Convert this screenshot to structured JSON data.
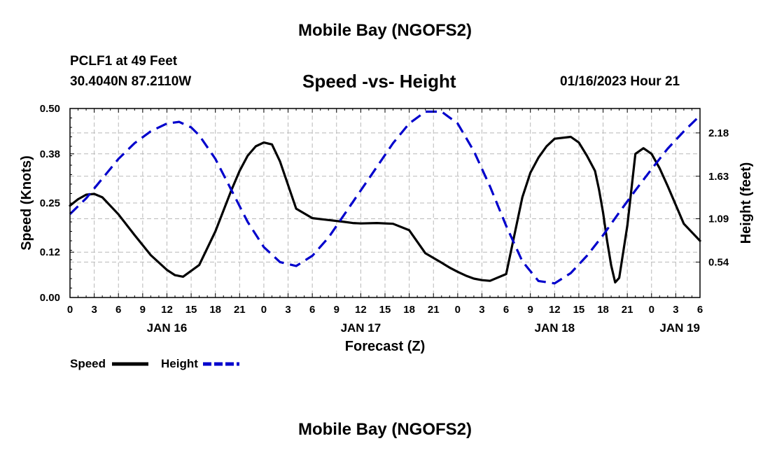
{
  "header": {
    "title": "Mobile Bay (NGOFS2)",
    "station": "PCLF1 at 49 Feet",
    "coordinates": "30.4040N  87.2110W",
    "subtitle": "Speed -vs- Height",
    "timestamp": "01/16/2023 Hour 21"
  },
  "footer": {
    "title": "Mobile Bay (NGOFS2)"
  },
  "chart_data": {
    "type": "line",
    "title": "Speed -vs- Height",
    "xlabel": "Forecast (Z)",
    "ylabel": "Speed (Knots)",
    "y2label": "Height (feet)",
    "xlim": [
      0,
      78
    ],
    "ylim": [
      0,
      0.5
    ],
    "y2lim": [
      0.09,
      2.49
    ],
    "grid": true,
    "legend_position": "bottom-left",
    "x_tick_labels": [
      "0",
      "3",
      "6",
      "9",
      "12",
      "15",
      "18",
      "21",
      "0",
      "3",
      "6",
      "9",
      "12",
      "15",
      "18",
      "21",
      "0",
      "3",
      "6",
      "9",
      "12",
      "15",
      "18",
      "21",
      "0",
      "3",
      "6"
    ],
    "date_labels": [
      {
        "label": "JAN 16",
        "x": 12
      },
      {
        "label": "JAN 17",
        "x": 36
      },
      {
        "label": "JAN 18",
        "x": 60
      },
      {
        "label": "JAN 19",
        "x": 78
      }
    ],
    "y_ticks": [
      0.0,
      0.12,
      0.25,
      0.38,
      0.5
    ],
    "y_tick_labels": [
      "0.00",
      "0.12",
      "0.25",
      "0.38",
      "0.50"
    ],
    "y2_ticks": [
      0.54,
      1.09,
      1.63,
      2.18
    ],
    "y2_tick_labels": [
      "0.54",
      "1.09",
      "1.63",
      "2.18"
    ],
    "series": [
      {
        "name": "Speed",
        "axis": "left",
        "color": "#000000",
        "dash": "solid",
        "x": [
          0,
          1,
          2,
          3,
          4,
          6,
          8,
          10,
          12,
          13,
          14,
          16,
          18,
          20,
          21,
          22,
          23,
          24,
          25,
          26,
          28,
          30,
          32,
          34,
          35,
          36,
          38,
          40,
          42,
          44,
          46,
          47,
          48,
          49,
          50,
          51,
          52,
          54,
          56,
          57,
          58,
          59,
          60,
          62,
          63,
          64,
          65,
          65.5,
          66,
          66.5,
          67,
          67.5,
          68,
          69,
          70,
          71,
          72,
          73,
          74,
          76,
          78
        ],
        "y": [
          0.243,
          0.26,
          0.272,
          0.274,
          0.265,
          0.22,
          0.165,
          0.112,
          0.073,
          0.059,
          0.055,
          0.086,
          0.175,
          0.285,
          0.335,
          0.375,
          0.4,
          0.41,
          0.405,
          0.36,
          0.235,
          0.21,
          0.205,
          0.2,
          0.197,
          0.196,
          0.197,
          0.195,
          0.178,
          0.117,
          0.092,
          0.079,
          0.068,
          0.058,
          0.05,
          0.046,
          0.044,
          0.062,
          0.265,
          0.33,
          0.37,
          0.4,
          0.42,
          0.425,
          0.41,
          0.375,
          0.335,
          0.285,
          0.225,
          0.15,
          0.085,
          0.04,
          0.052,
          0.19,
          0.38,
          0.395,
          0.38,
          0.342,
          0.295,
          0.195,
          0.15
        ]
      },
      {
        "name": "Height",
        "axis": "right",
        "color": "#0000cc",
        "dash": "dashed",
        "x": [
          0,
          2,
          4,
          6,
          8,
          10,
          12,
          13.5,
          15,
          16,
          18,
          20,
          22,
          24,
          26,
          28,
          30,
          32,
          34,
          36,
          38,
          40,
          42,
          44,
          46,
          48,
          50,
          52,
          54,
          56,
          58,
          60,
          62,
          64,
          66,
          68,
          70,
          72,
          74,
          76,
          78
        ],
        "y": [
          1.15,
          1.35,
          1.6,
          1.85,
          2.05,
          2.2,
          2.3,
          2.32,
          2.25,
          2.15,
          1.85,
          1.45,
          1.05,
          0.73,
          0.54,
          0.49,
          0.62,
          0.85,
          1.15,
          1.45,
          1.75,
          2.05,
          2.3,
          2.45,
          2.45,
          2.3,
          1.95,
          1.5,
          1.0,
          0.55,
          0.3,
          0.27,
          0.4,
          0.62,
          0.88,
          1.17,
          1.45,
          1.72,
          1.98,
          2.2,
          2.4
        ]
      }
    ]
  }
}
